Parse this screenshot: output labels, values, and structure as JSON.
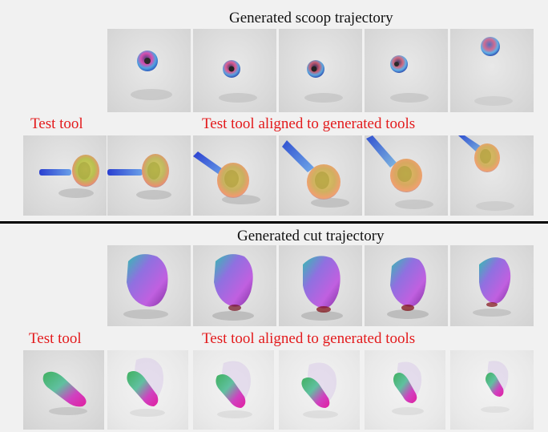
{
  "scoop": {
    "title": "Generated scoop trajectory",
    "test_tool_label": "Test tool",
    "aligned_label": "Test tool aligned to generated tools"
  },
  "cut": {
    "title": "Generated cut trajectory",
    "test_tool_label": "Test tool",
    "aligned_label": "Test tool aligned to generated tools"
  },
  "colors": {
    "caption_red": "#e31a1c",
    "caption_black": "#111111",
    "divider": "#000000"
  }
}
